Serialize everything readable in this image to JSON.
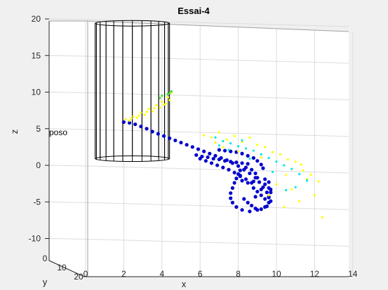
{
  "chart_data": {
    "type": "scatter",
    "title": "Essai-4",
    "xlabel": "x",
    "ylabel": "y",
    "zlabel": "z",
    "x_ticks": [
      "0",
      "2",
      "4",
      "6",
      "8",
      "10",
      "12",
      "14"
    ],
    "y_ticks": [
      "0",
      "10",
      "20"
    ],
    "z_ticks": [
      "20",
      "15",
      "10",
      "5",
      "0",
      "-5",
      "-10"
    ],
    "xlim": [
      0,
      14
    ],
    "zlim": [
      -10,
      20
    ],
    "grid": true,
    "annotation": "poso",
    "cylinder": {
      "x_range": [
        0.5,
        4.4
      ],
      "z_range": [
        1,
        19.5
      ],
      "rulings": 24
    },
    "colors": {
      "background": "#f0f0f0",
      "axes": "#ffffff",
      "grid": "#dcdcdc",
      "cylinder": "#000000",
      "series_main": "#0000cc",
      "series_yellow": "#ffff00",
      "series_cyan": "#00e5e5",
      "series_green": "#40e040"
    },
    "series": [
      {
        "color": "#0000cc",
        "points": [
          [
            2.0,
            6.0
          ],
          [
            2.3,
            5.9
          ],
          [
            2.6,
            5.7
          ],
          [
            2.9,
            5.4
          ],
          [
            3.2,
            5.1
          ],
          [
            3.5,
            4.7
          ],
          [
            3.8,
            4.4
          ],
          [
            4.1,
            4.1
          ],
          [
            4.4,
            3.8
          ],
          [
            4.7,
            3.5
          ],
          [
            5.0,
            3.2
          ],
          [
            5.3,
            2.9
          ],
          [
            5.6,
            2.6
          ],
          [
            5.9,
            2.3
          ],
          [
            6.2,
            2.0
          ],
          [
            6.5,
            1.7
          ],
          [
            6.8,
            1.4
          ],
          [
            7.1,
            1.1
          ],
          [
            7.4,
            0.8
          ],
          [
            7.7,
            0.4
          ],
          [
            8.0,
            0.0
          ],
          [
            8.3,
            -0.5
          ],
          [
            8.6,
            -1.0
          ],
          [
            8.9,
            -1.6
          ],
          [
            9.1,
            -2.2
          ],
          [
            9.3,
            -2.9
          ],
          [
            9.5,
            -3.6
          ],
          [
            9.6,
            -4.3
          ],
          [
            9.6,
            -5.0
          ],
          [
            9.4,
            -5.6
          ],
          [
            9.0,
            -6.0
          ],
          [
            8.6,
            -6.2
          ],
          [
            8.2,
            -6.0
          ],
          [
            7.9,
            -5.6
          ],
          [
            7.7,
            -5.0
          ],
          [
            7.6,
            -4.4
          ],
          [
            7.6,
            -3.7
          ],
          [
            7.7,
            -3.0
          ],
          [
            7.8,
            -2.3
          ],
          [
            7.9,
            -1.7
          ],
          [
            8.0,
            -1.1
          ],
          [
            8.1,
            -0.6
          ],
          [
            8.4,
            -0.2
          ],
          [
            8.7,
            -0.5
          ],
          [
            8.9,
            -1.0
          ],
          [
            9.0,
            -1.6
          ],
          [
            8.8,
            -2.1
          ],
          [
            8.5,
            -2.3
          ],
          [
            8.2,
            -2.0
          ],
          [
            8.1,
            -1.4
          ],
          [
            5.8,
            1.5
          ],
          [
            6.1,
            1.3
          ],
          [
            6.4,
            1.2
          ],
          [
            6.7,
            1.0
          ],
          [
            7.0,
            0.9
          ],
          [
            7.3,
            0.7
          ],
          [
            7.6,
            0.6
          ],
          [
            7.9,
            0.5
          ],
          [
            8.2,
            0.4
          ],
          [
            8.5,
            0.3
          ],
          [
            6.0,
            1.0
          ],
          [
            6.3,
            0.7
          ],
          [
            6.6,
            0.4
          ],
          [
            6.9,
            0.1
          ],
          [
            7.2,
            -0.2
          ],
          [
            7.5,
            -0.5
          ],
          [
            7.8,
            -0.9
          ],
          [
            8.1,
            -1.3
          ],
          [
            8.4,
            -1.8
          ],
          [
            8.7,
            -2.3
          ],
          [
            7.0,
            2.2
          ],
          [
            7.3,
            2.1
          ],
          [
            7.6,
            2.0
          ],
          [
            7.9,
            1.9
          ],
          [
            8.2,
            1.7
          ],
          [
            8.5,
            1.4
          ],
          [
            8.8,
            1.1
          ],
          [
            9.0,
            0.7
          ],
          [
            9.2,
            0.2
          ],
          [
            9.3,
            -0.3
          ],
          [
            8.8,
            -3.0
          ],
          [
            9.0,
            -3.5
          ],
          [
            9.2,
            -4.0
          ],
          [
            9.4,
            -4.5
          ],
          [
            9.6,
            -4.2
          ],
          [
            9.7,
            -3.6
          ],
          [
            9.6,
            -3.0
          ],
          [
            9.4,
            -2.5
          ],
          [
            9.2,
            -3.2
          ],
          [
            8.9,
            -4.2
          ],
          [
            8.3,
            -4.5
          ],
          [
            8.5,
            -5.0
          ],
          [
            8.7,
            -5.4
          ],
          [
            8.9,
            -5.8
          ],
          [
            9.2,
            -5.9
          ],
          [
            9.5,
            -5.5
          ],
          [
            9.7,
            -4.8
          ],
          [
            9.7,
            -3.2
          ],
          [
            9.6,
            -2.2
          ],
          [
            9.4,
            -1.8
          ]
        ]
      },
      {
        "color": "#ffff00",
        "points": [
          [
            6.2,
            4.2
          ],
          [
            6.6,
            3.9
          ],
          [
            7.0,
            4.6
          ],
          [
            7.4,
            3.6
          ],
          [
            7.8,
            4.1
          ],
          [
            8.2,
            3.3
          ],
          [
            8.6,
            3.9
          ],
          [
            9.0,
            2.9
          ],
          [
            9.4,
            2.6
          ],
          [
            9.8,
            1.9
          ],
          [
            10.2,
            1.6
          ],
          [
            10.6,
            0.9
          ],
          [
            11.0,
            0.6
          ],
          [
            11.4,
            -0.6
          ],
          [
            11.8,
            -1.2
          ],
          [
            12.2,
            -2.1
          ],
          [
            12.0,
            -4.0
          ],
          [
            11.2,
            -4.8
          ],
          [
            10.4,
            -5.6
          ],
          [
            12.4,
            -7.0
          ],
          [
            10.0,
            -2.5
          ],
          [
            10.8,
            -3.2
          ],
          [
            11.6,
            -1.8
          ],
          [
            9.6,
            -4.0
          ],
          [
            8.0,
            2.0
          ],
          [
            7.2,
            2.6
          ],
          [
            6.8,
            3.2
          ],
          [
            9.2,
            1.2
          ],
          [
            10.5,
            -1.2
          ],
          [
            11.3,
            0.2
          ]
        ]
      },
      {
        "color": "#00e5e5",
        "points": [
          [
            6.8,
            3.9
          ],
          [
            7.2,
            3.4
          ],
          [
            7.6,
            3.1
          ],
          [
            8.0,
            2.7
          ],
          [
            8.4,
            2.4
          ],
          [
            8.8,
            2.1
          ],
          [
            9.2,
            1.6
          ],
          [
            9.6,
            1.1
          ],
          [
            10.0,
            0.6
          ],
          [
            10.4,
            0.1
          ],
          [
            10.8,
            -0.4
          ],
          [
            11.2,
            -1.1
          ],
          [
            11.6,
            -2.0
          ],
          [
            11.0,
            -2.9
          ],
          [
            10.5,
            -3.3
          ],
          [
            7.5,
            2.2
          ],
          [
            8.6,
            1.0
          ],
          [
            9.8,
            -0.8
          ],
          [
            8.2,
            3.5
          ],
          [
            7.0,
            2.8
          ]
        ]
      },
      {
        "color": "#ffff00",
        "points": [
          [
            2.1,
            6.4
          ],
          [
            2.5,
            6.8
          ],
          [
            2.9,
            7.3
          ],
          [
            3.3,
            7.8
          ],
          [
            3.7,
            8.3
          ],
          [
            4.0,
            8.8
          ],
          [
            4.3,
            9.4
          ],
          [
            4.5,
            10.0
          ],
          [
            2.3,
            6.2
          ],
          [
            2.7,
            6.6
          ],
          [
            3.1,
            7.0
          ],
          [
            3.5,
            7.5
          ],
          [
            3.9,
            8.0
          ],
          [
            4.2,
            8.5
          ],
          [
            4.4,
            9.0
          ],
          [
            2.4,
            6.5
          ],
          [
            2.8,
            6.9
          ],
          [
            3.2,
            7.4
          ],
          [
            3.6,
            7.9
          ],
          [
            4.1,
            8.4
          ]
        ]
      },
      {
        "color": "#40e040",
        "points": [
          [
            4.3,
            9.8
          ],
          [
            4.5,
            10.2
          ],
          [
            4.4,
            10.0
          ],
          [
            3.9,
            9.3
          ],
          [
            4.0,
            9.6
          ]
        ]
      }
    ]
  }
}
